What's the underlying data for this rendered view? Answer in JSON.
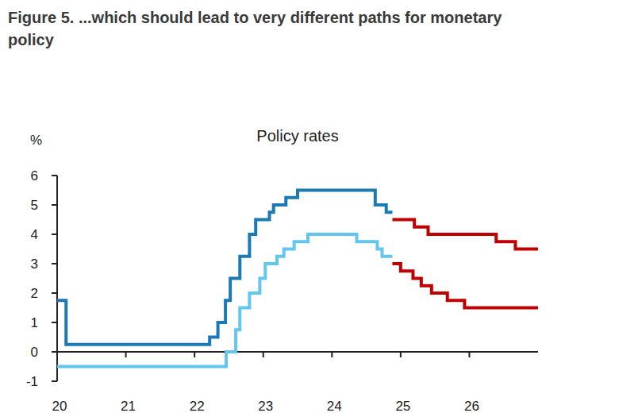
{
  "chart_data": {
    "type": "line",
    "title": "Figure 5. ...which should lead to very different paths for monetary policy",
    "subtitle": "Policy rates",
    "y_label": "%",
    "line_style": "step",
    "xlim": [
      2020,
      2027
    ],
    "xticks": [
      {
        "value": 2020,
        "label": "20"
      },
      {
        "value": 2021,
        "label": "21"
      },
      {
        "value": 2022,
        "label": "22"
      },
      {
        "value": 2023,
        "label": "23"
      },
      {
        "value": 2024,
        "label": "24"
      },
      {
        "value": 2025,
        "label": "25"
      },
      {
        "value": 2026,
        "label": "26"
      }
    ],
    "ylim": [
      -1,
      6
    ],
    "yticks": [
      -1,
      0,
      1,
      2,
      3,
      4,
      5,
      6
    ],
    "series": [
      {
        "color": "#1b7ab3",
        "x": [
          2020.0,
          2020.13,
          2022.22,
          2022.34,
          2022.45,
          2022.52,
          2022.66,
          2022.8,
          2022.89,
          2023.09,
          2023.15,
          2023.33,
          2023.5,
          2024.63,
          2024.79,
          2024.88
        ],
        "values": [
          1.75,
          0.25,
          0.5,
          1.0,
          1.75,
          2.5,
          3.25,
          4.0,
          4.5,
          4.75,
          5.0,
          5.25,
          5.5,
          5.0,
          4.75,
          4.75
        ]
      },
      {
        "color": "#62c6ee",
        "x": [
          2020.0,
          2022.46,
          2022.6,
          2022.66,
          2022.8,
          2022.95,
          2023.03,
          2023.2,
          2023.3,
          2023.45,
          2023.65,
          2024.36,
          2024.66,
          2024.73,
          2024.88
        ],
        "values": [
          -0.5,
          0.0,
          0.75,
          1.5,
          2.0,
          2.5,
          3.0,
          3.25,
          3.5,
          3.75,
          4.0,
          3.75,
          3.5,
          3.25,
          3.25
        ]
      },
      {
        "color": "#c00000",
        "x": [
          2024.88,
          2025.2,
          2025.4,
          2026.39,
          2026.67,
          2027.0
        ],
        "values": [
          4.5,
          4.25,
          4.0,
          3.75,
          3.5,
          3.5
        ]
      },
      {
        "color": "#c00000",
        "x": [
          2024.88,
          2025.0,
          2025.18,
          2025.3,
          2025.45,
          2025.68,
          2025.93,
          2027.0
        ],
        "values": [
          3.0,
          2.75,
          2.5,
          2.25,
          2.0,
          1.75,
          1.5,
          1.5
        ]
      }
    ]
  }
}
